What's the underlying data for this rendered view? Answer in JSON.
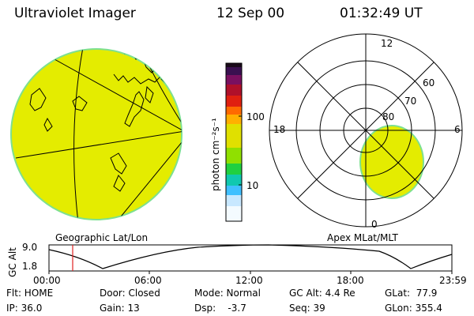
{
  "header": {
    "instrument": "Ultraviolet Imager",
    "date": "12 Sep 00",
    "time": "01:32:49 UT"
  },
  "colorbar": {
    "unit_label": "photon cm⁻²s⁻¹",
    "ticks": [
      "100",
      "10"
    ],
    "colors": [
      "#1a0a1a",
      "#3a1050",
      "#7a1060",
      "#b0102a",
      "#e02010",
      "#ff6a00",
      "#ffb000",
      "#e0e000",
      "#90e000",
      "#20d040",
      "#10c8b0",
      "#40c0ff",
      "#c8e8ff",
      "#ffffff"
    ]
  },
  "geo_map": {
    "label": "Geographic Lat/Lon",
    "fill_color": "#e4ec00",
    "edge_color": "#7de090"
  },
  "polar_plot": {
    "label": "Apex MLat/MLT",
    "mlt_labels": {
      "top": "12",
      "left": "18",
      "right": "6",
      "bottom": "0"
    },
    "lat_labels": [
      "60",
      "70",
      "80"
    ],
    "fill_color": "#e4ec00"
  },
  "altitude_strip": {
    "axis_label": "GC Alt",
    "y_ticks": [
      "9.0",
      "1.8"
    ],
    "x_ticks": [
      "00:00",
      "06:00",
      "12:00",
      "18:00",
      "23:59"
    ],
    "marker_color": "#e02020"
  },
  "info": {
    "flt": "Flt: HOME",
    "ip": "IP: 36.0",
    "door": "Door: Closed",
    "gain": "Gain: 13",
    "mode": "Mode: Normal",
    "dsp": "Dsp:    -3.7",
    "gc_alt": "GC Alt: 4.4 Re",
    "seq": "Seq: 39",
    "glat": "GLat:  77.9",
    "glon": "GLon: 355.4"
  }
}
